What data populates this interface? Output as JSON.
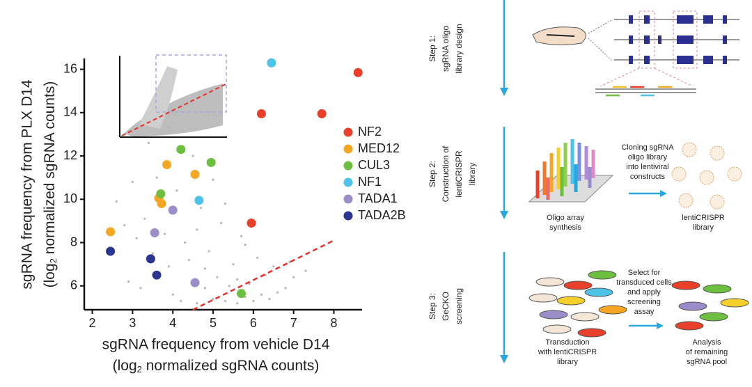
{
  "chart_data": {
    "type": "scatter",
    "xlabel": "sgRNA frequency from vehicle D14",
    "xlabel_units": [
      "(log",
      "2",
      " normalized sgRNA counts)"
    ],
    "ylabel": "sgRNA frequency from PLX D14",
    "ylabel_units": [
      "(log",
      "2",
      " normalized sgRNA counts)"
    ],
    "xlim": [
      1.8,
      8.7
    ],
    "ylim": [
      4.9,
      16.5
    ],
    "xticks": [
      2,
      3,
      4,
      5,
      6,
      7,
      8
    ],
    "yticks": [
      6,
      8,
      10,
      12,
      14,
      16
    ],
    "legend": "right",
    "series": [
      {
        "name": "NF2",
        "color": "#e8402a",
        "x": [
          8.6,
          6.2,
          7.7,
          5.95
        ],
        "y": [
          15.85,
          13.95,
          13.95,
          8.9
        ]
      },
      {
        "name": "MED12",
        "color": "#f5a623",
        "x": [
          2.45,
          3.65,
          3.72,
          3.85,
          4.55
        ],
        "y": [
          8.5,
          10.05,
          9.8,
          11.6,
          11.15
        ]
      },
      {
        "name": "CUL3",
        "color": "#6cbf3f",
        "x": [
          4.2,
          4.95,
          3.7,
          5.7
        ],
        "y": [
          12.3,
          11.7,
          10.25,
          5.65
        ]
      },
      {
        "name": "NF1",
        "color": "#4ec3e8",
        "x": [
          6.45,
          4.65
        ],
        "y": [
          16.3,
          9.95
        ]
      },
      {
        "name": "TADA1",
        "color": "#9b8dc8",
        "x": [
          4.0,
          3.55,
          4.55
        ],
        "y": [
          9.5,
          8.45,
          6.15
        ]
      },
      {
        "name": "TADA2B",
        "color": "#2b3590",
        "x": [
          2.45,
          3.45,
          3.6
        ],
        "y": [
          7.6,
          7.25,
          6.5
        ]
      }
    ],
    "background": {
      "color": "#b5b5b5",
      "x": [
        4.2,
        4.6,
        5.0,
        5.3,
        5.6,
        5.8,
        6.0,
        6.2,
        6.4,
        6.6,
        6.8,
        5.4,
        5.9,
        6.3,
        5.1,
        4.8,
        4.4,
        3.9,
        3.5,
        3.1,
        2.8,
        3.3,
        3.8,
        4.3,
        4.9,
        5.5,
        6.1,
        5.2,
        4.7,
        4.1,
        3.6,
        3.0,
        2.6,
        5.7,
        6.5,
        7.0,
        7.3,
        6.9,
        4.5,
        5.0,
        3.4,
        3.9,
        4.6,
        5.3,
        5.8,
        2.9,
        3.2,
        4.0,
        4.8,
        5.6
      ],
      "y": [
        5.3,
        5.2,
        5.4,
        5.3,
        5.2,
        5.5,
        5.3,
        5.6,
        5.4,
        5.7,
        5.9,
        6.0,
        6.1,
        6.5,
        6.4,
        6.8,
        7.2,
        6.9,
        7.5,
        8.2,
        8.8,
        9.1,
        8.4,
        8.0,
        7.6,
        7.0,
        7.3,
        8.9,
        9.6,
        10.4,
        11.0,
        10.8,
        9.9,
        8.3,
        6.9,
        6.4,
        6.7,
        7.1,
        12.0,
        10.9,
        12.6,
        13.3,
        8.6,
        9.8,
        7.9,
        6.2,
        5.9,
        5.6,
        5.9,
        6.3
      ]
    },
    "reference_line": {
      "color": "#e8302a",
      "x": [
        4.5,
        8.0
      ],
      "y": [
        4.9,
        8.1
      ]
    }
  },
  "diagram": {
    "steps": [
      {
        "lines": [
          "Step 1:",
          "sgRNA oligo",
          "library design"
        ]
      },
      {
        "lines": [
          "Step 2:",
          "Construction of",
          "lentiCRISPR",
          "library"
        ]
      },
      {
        "lines": [
          "Step 3:",
          "GeCKO",
          "screening"
        ]
      }
    ],
    "oligo_array": [
      "Oligo array",
      "synthesis"
    ],
    "cloning": [
      "Cloning sgRNA",
      "oligo library",
      "into lentiviral",
      "constructs"
    ],
    "library": [
      "lentiCRISPR",
      "library"
    ],
    "select": [
      "Select for",
      "transduced cells",
      "and apply",
      "screening",
      "assay"
    ],
    "transduction": [
      "Transduction",
      "with lentiCRISPR",
      "library"
    ],
    "analysis": [
      "Analysis",
      "of remaining",
      "sgRNA pool"
    ]
  }
}
